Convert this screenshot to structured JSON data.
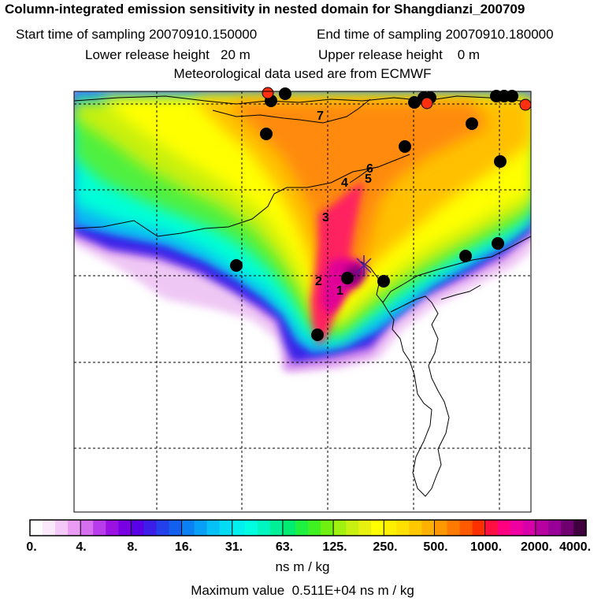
{
  "title": "Column-integrated emission sensitivity in nested domain for Shangdianzi_200709",
  "sampling": {
    "start": "Start time of sampling 20070910.150000",
    "end": "End time of sampling 20070910.180000"
  },
  "release": {
    "lower": "Lower release height   20 m",
    "upper": "Upper release height    0 m"
  },
  "meteo": "Meteorological data used are from ECMWF",
  "colorbar": {
    "tick_labels": [
      "0.",
      "4.",
      "8.",
      "16.",
      "31.",
      "63.",
      "125.",
      "250.",
      "500.",
      "1000.",
      "2000.",
      "4000."
    ],
    "colors": [
      "#ffffff",
      "#fbe8fb",
      "#f4c8f8",
      "#ea9cf4",
      "#d66ef0",
      "#b83cea",
      "#9a12e2",
      "#7a00e4",
      "#5a00e6",
      "#3c1ee8",
      "#2440ea",
      "#1460ee",
      "#0a80f2",
      "#08a0f6",
      "#06c0f8",
      "#04dcf6",
      "#02f0ee",
      "#00ffe0",
      "#00f8c0",
      "#00f098",
      "#00ec70",
      "#20f040",
      "#40f020",
      "#70f010",
      "#a0f010",
      "#c8f010",
      "#e8f010",
      "#ffff00",
      "#fff000",
      "#ffe000",
      "#ffc800",
      "#ffb000",
      "#ff9800",
      "#ff7a00",
      "#ff5a00",
      "#ff3000",
      "#ff1040",
      "#ff0080",
      "#f000a0",
      "#d800a8",
      "#b800a0",
      "#980098",
      "#700070",
      "#400040"
    ],
    "units": "ns m / kg",
    "max_value": "Maximum value  0.511E+04 ns m / kg"
  },
  "trajectory_labels": [
    "1",
    "2",
    "3",
    "4",
    "5",
    "6",
    "7"
  ],
  "release_site": "Shangdianzi",
  "legend_colors": {
    "high": "#ff0088",
    "mid": "#ffff00",
    "low": "#00ffe0",
    "outer": "#a000e0"
  }
}
